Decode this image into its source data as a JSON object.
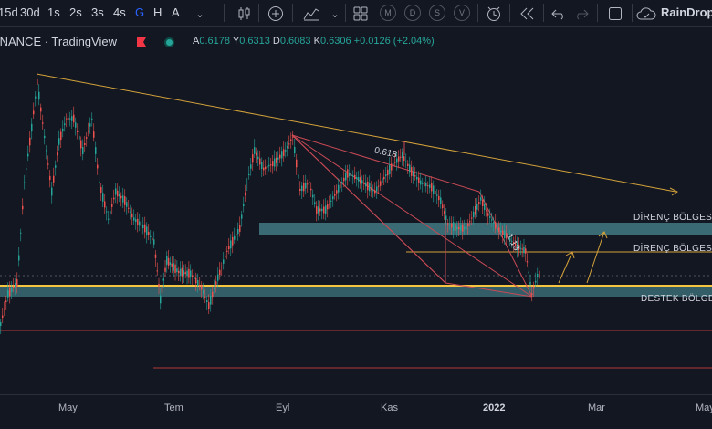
{
  "toolbar": {
    "timeframes": [
      "15d",
      "30d",
      "1s",
      "2s",
      "3s",
      "4s",
      "G",
      "H",
      "A"
    ],
    "active_timeframe": "G",
    "circle_buttons": [
      "M",
      "D",
      "S",
      "V"
    ],
    "brand": "RainDropC"
  },
  "legend": {
    "symbol": "INANCE · TradingView",
    "open_label": "A",
    "open": "0.6178",
    "high_label": "Y",
    "high": "0.6313",
    "low_label": "D",
    "low": "0.6083",
    "close_label": "K",
    "close": "0.6306",
    "change": "+0.0126 (+2.04%)"
  },
  "annotations": {
    "resistance_1": "DİRENÇ BÖLGESİ",
    "resistance_2": "DİRENÇ BÖLGESİ",
    "support": "DESTEK BÖLGESİ",
    "fib_1": "0.618",
    "fib_2": "1.13"
  },
  "xaxis": [
    "May",
    "Tem",
    "Eyl",
    "Kas",
    "2022",
    "Mar",
    "May"
  ],
  "colors": {
    "background": "#131722",
    "up": "#26a69a",
    "down": "#ef5350",
    "trendline": "#d4a23a",
    "zone": "#3a6a73",
    "support_line": "#f5c542",
    "red_line": "#b23a3a"
  }
}
